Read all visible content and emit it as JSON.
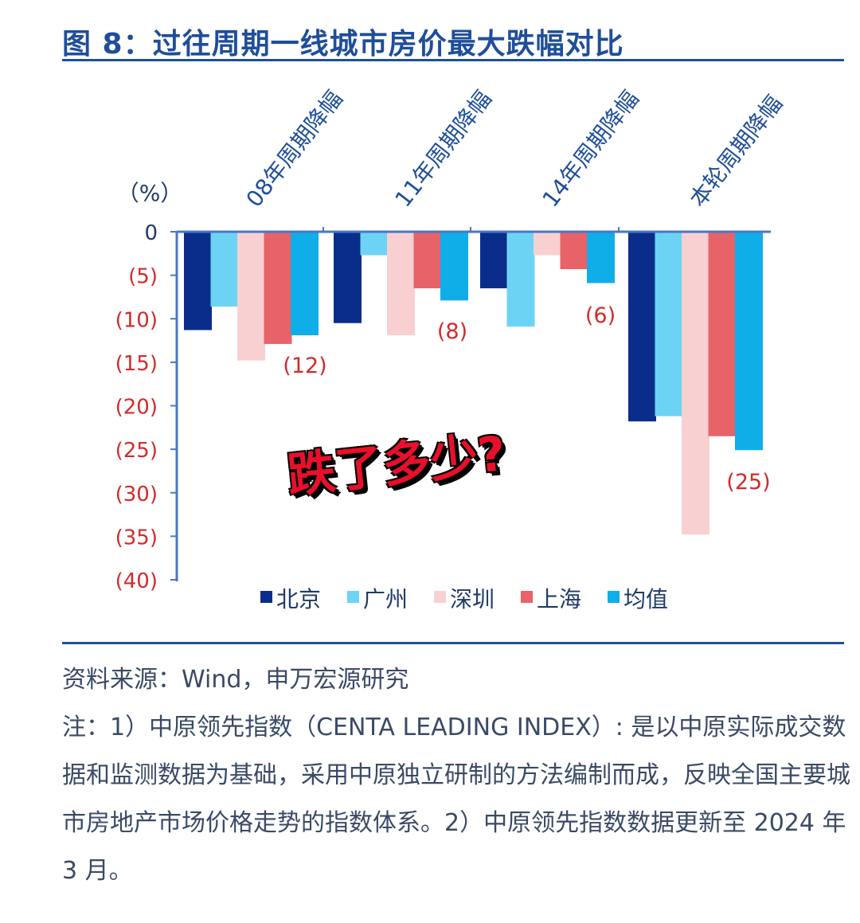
{
  "title": "图 8：过往周期一线城市房价最大跌幅对比",
  "sticker_text": "跌了多少?",
  "source": "资料来源：Wind，申万宏源研究",
  "note": "注：1）中原领先指数（CENTA LEADING INDEX）: 是以中原实际成交数据和监测数据为基础，采用中原独立研制的方法编制而成，反映全国主要城市房地产市场价格走势的指数体系。2）中原领先指数数据更新至 2024 年 3 月。",
  "chart_data": {
    "type": "bar",
    "ylabel": "（%）",
    "ylim": [
      -40,
      0
    ],
    "yticks": [
      0,
      -5,
      -10,
      -15,
      -20,
      -25,
      -30,
      -35,
      -40
    ],
    "ytick_labels": [
      "0",
      "(5)",
      "(10)",
      "(15)",
      "(20)",
      "(25)",
      "(30)",
      "(35)",
      "(40)"
    ],
    "categories": [
      "08年周期降幅",
      "11年周期降幅",
      "14年周期降幅",
      "本轮周期降幅"
    ],
    "series": [
      {
        "name": "北京",
        "color": "#0a2d8c",
        "values": [
          -11.3,
          -10.5,
          -6.5,
          -21.8
        ]
      },
      {
        "name": "广州",
        "color": "#6dd3f5",
        "values": [
          -8.6,
          -2.7,
          -10.9,
          -21.2
        ]
      },
      {
        "name": "深圳",
        "color": "#f8d0d2",
        "values": [
          -14.8,
          -11.9,
          -2.7,
          -34.8
        ]
      },
      {
        "name": "上海",
        "color": "#e8626a",
        "values": [
          -12.9,
          -6.5,
          -4.3,
          -23.5
        ]
      },
      {
        "name": "均值",
        "color": "#10aee8",
        "values": [
          -11.9,
          -7.9,
          -5.9,
          -25.1
        ]
      }
    ],
    "annotations": [
      "(12)",
      "(8)",
      "(6)",
      "(25)"
    ],
    "axis_color": "#4a78c0",
    "tick_label_color": "#d32b2b"
  }
}
